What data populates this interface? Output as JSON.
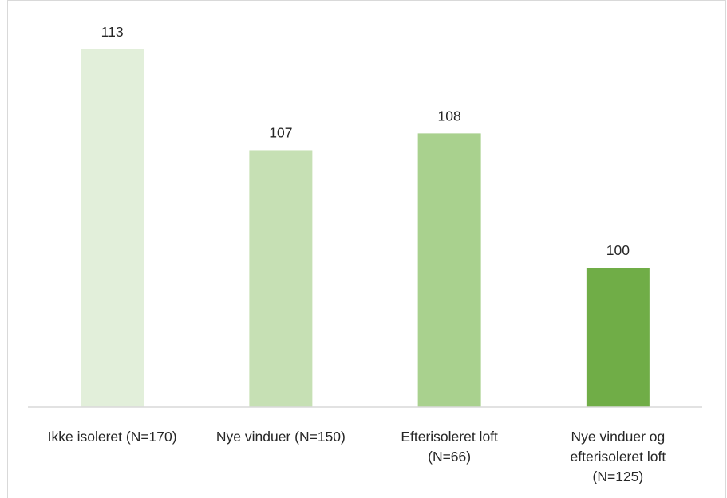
{
  "chart_data": {
    "type": "bar",
    "title": "",
    "xlabel": "",
    "ylabel": "",
    "categories": [
      "Ikke isoleret (N=170)",
      "Nye vinduer (N=150)",
      "Efterisoleret loft\n(N=66)",
      "Nye vinduer og\nefterisoleret loft\n(N=125)"
    ],
    "values": [
      113,
      107,
      108,
      100
    ],
    "value_labels": [
      "113",
      "107",
      "108",
      "100"
    ],
    "colors": [
      "#e2efda",
      "#c6e0b4",
      "#a9d18e",
      "#70ad47"
    ],
    "grid": false,
    "legend": "none"
  }
}
